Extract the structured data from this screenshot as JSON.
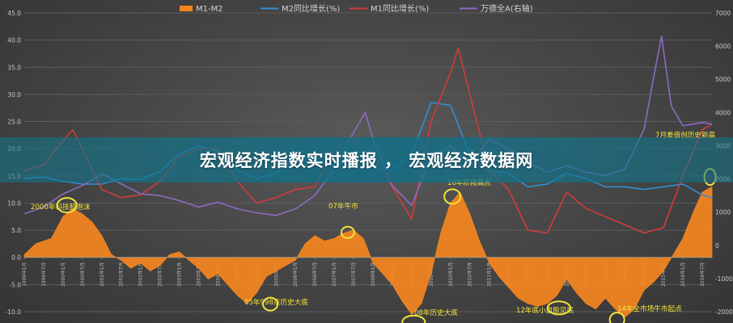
{
  "banner": {
    "title": "宏观经济指数实时播报 ， 宏观经济数据网"
  },
  "chart_data": {
    "type": "line",
    "legend_position": "top",
    "grid": true,
    "y_left": {
      "min": -10.0,
      "max": 45.0,
      "step": 5,
      "ticks": [
        "-10.0",
        "-5.0",
        "0.0",
        "5.0",
        "10.0",
        "15.0",
        "20.0",
        "25.0",
        "30.0",
        "35.0",
        "40.0",
        "45.0"
      ]
    },
    "y_right": {
      "min": -2000,
      "max": 7000,
      "step": 1000,
      "ticks": [
        "-2000",
        "-1000",
        "0",
        "1000",
        "2000",
        "3000",
        "4000",
        "5000",
        "6000",
        "7000"
      ]
    },
    "x_range": [
      1999,
      2016.75
    ],
    "x_tick_labels": [
      "1999年1月",
      "1999年7月",
      "2000年1月",
      "2000年7月",
      "2001年1月",
      "2001年7月",
      "2002年1月",
      "2002年7月",
      "2003年1月",
      "2003年7月",
      "2004年1月",
      "2004年7月",
      "2005年1月",
      "2005年7月",
      "2006年1月",
      "2006年7月",
      "2007年1月",
      "2007年7月",
      "2008年1月",
      "2008年7月",
      "2009年1月",
      "2009年7月",
      "2010年1月",
      "2010年7月",
      "2011年1月",
      "2011年7月",
      "2012年1月",
      "2012年7月",
      "2013年1月",
      "2013年7月",
      "2014年1月",
      "2014年7月",
      "2015年1月",
      "2015年7月",
      "2016年1月",
      "2016年7月"
    ],
    "series": [
      {
        "name": "M1-M2",
        "type": "area",
        "axis": "left",
        "color": "#f5861f",
        "x": [
          1999.0,
          1999.3,
          1999.7,
          2000.0,
          2000.25,
          2000.5,
          2000.75,
          2001.0,
          2001.25,
          2001.5,
          2001.75,
          2002.0,
          2002.25,
          2002.5,
          2002.75,
          2003.0,
          2003.25,
          2003.5,
          2003.75,
          2004.0,
          2004.25,
          2004.5,
          2004.75,
          2005.0,
          2005.25,
          2005.5,
          2005.75,
          2006.0,
          2006.25,
          2006.5,
          2006.75,
          2007.0,
          2007.25,
          2007.5,
          2007.75,
          2008.0,
          2008.25,
          2008.5,
          2008.75,
          2009.0,
          2009.25,
          2009.5,
          2009.75,
          2010.0,
          2010.25,
          2010.5,
          2010.75,
          2011.0,
          2011.25,
          2011.5,
          2011.75,
          2012.0,
          2012.25,
          2012.5,
          2012.75,
          2013.0,
          2013.25,
          2013.5,
          2013.75,
          2014.0,
          2014.25,
          2014.5,
          2014.75,
          2015.0,
          2015.25,
          2015.5,
          2015.75,
          2016.0,
          2016.25,
          2016.5,
          2016.75
        ],
        "y": [
          0.5,
          2.5,
          3.5,
          7.5,
          9.0,
          8.0,
          6.5,
          4.0,
          0.5,
          -0.5,
          -2.0,
          -1.0,
          -2.5,
          -1.5,
          0.5,
          1.0,
          -0.5,
          -2.0,
          -4.0,
          -3.0,
          -5.0,
          -7.0,
          -8.5,
          -6.5,
          -3.5,
          -2.5,
          -1.5,
          -0.5,
          2.5,
          4.0,
          3.0,
          3.5,
          4.5,
          5.0,
          3.5,
          -1.0,
          -3.0,
          -5.0,
          -8.0,
          -10.5,
          -8.5,
          -3.0,
          4.5,
          10.0,
          12.0,
          8.0,
          3.0,
          -1.0,
          -3.5,
          -5.5,
          -7.5,
          -8.5,
          -9.0,
          -8.5,
          -7.0,
          -4.0,
          -6.5,
          -8.5,
          -9.5,
          -7.5,
          -9.5,
          -11.0,
          -9.5,
          -6.0,
          -4.5,
          -2.5,
          0.5,
          3.5,
          8.0,
          12.0,
          13.0
        ]
      },
      {
        "name": "M2同比增长(%)",
        "type": "line",
        "axis": "left",
        "color": "#2f8fd6",
        "x": [
          1999.0,
          1999.5,
          2000.0,
          2000.5,
          2001.0,
          2001.5,
          2002.0,
          2002.5,
          2003.0,
          2003.5,
          2004.0,
          2004.5,
          2005.0,
          2005.5,
          2006.0,
          2006.5,
          2007.0,
          2007.5,
          2008.0,
          2008.5,
          2009.0,
          2009.5,
          2010.0,
          2010.5,
          2011.0,
          2011.5,
          2012.0,
          2012.5,
          2013.0,
          2013.5,
          2014.0,
          2014.5,
          2015.0,
          2015.5,
          2016.0,
          2016.5,
          2016.75
        ],
        "y": [
          14.5,
          14.8,
          14.0,
          13.5,
          13.5,
          14.5,
          14.3,
          15.8,
          19.0,
          20.5,
          19.5,
          16.0,
          14.5,
          15.5,
          18.5,
          18.0,
          17.0,
          18.0,
          16.5,
          16.0,
          19.0,
          28.5,
          28.0,
          19.0,
          16.0,
          15.5,
          13.0,
          13.5,
          15.5,
          14.5,
          13.0,
          13.0,
          12.5,
          13.0,
          13.5,
          11.5,
          11.0
        ]
      },
      {
        "name": "M1同比增长(%)",
        "type": "line",
        "axis": "left",
        "color": "#d23b3b",
        "x": [
          1999.0,
          1999.5,
          2000.0,
          2000.25,
          2000.5,
          2001.0,
          2001.5,
          2002.0,
          2002.5,
          2003.0,
          2003.5,
          2004.0,
          2004.5,
          2005.0,
          2005.5,
          2006.0,
          2006.5,
          2007.0,
          2007.5,
          2008.0,
          2008.5,
          2009.0,
          2009.5,
          2010.0,
          2010.2,
          2010.5,
          2011.0,
          2011.5,
          2012.0,
          2012.5,
          2013.0,
          2013.5,
          2014.0,
          2014.5,
          2015.0,
          2015.5,
          2016.0,
          2016.5,
          2016.75
        ],
        "y": [
          16.0,
          17.0,
          21.5,
          23.5,
          20.0,
          12.5,
          11.0,
          11.5,
          14.0,
          18.5,
          20.0,
          20.0,
          14.0,
          10.0,
          11.0,
          12.5,
          13.0,
          20.0,
          22.0,
          19.0,
          13.0,
          7.0,
          25.0,
          34.0,
          38.5,
          30.0,
          16.0,
          12.5,
          5.0,
          4.5,
          12.0,
          9.0,
          7.5,
          6.0,
          4.5,
          5.5,
          15.0,
          23.5,
          24.5
        ]
      },
      {
        "name": "万德全A(右轴)",
        "type": "line",
        "axis": "right",
        "color": "#8d6bc1",
        "x": [
          1999.0,
          1999.5,
          2000.0,
          2000.5,
          2001.0,
          2001.5,
          2002.0,
          2002.5,
          2003.0,
          2003.5,
          2004.0,
          2004.5,
          2005.0,
          2005.5,
          2006.0,
          2006.5,
          2007.0,
          2007.5,
          2007.8,
          2008.0,
          2008.5,
          2009.0,
          2009.5,
          2010.0,
          2010.5,
          2011.0,
          2011.5,
          2012.0,
          2012.5,
          2013.0,
          2013.5,
          2014.0,
          2014.5,
          2015.0,
          2015.25,
          2015.45,
          2015.7,
          2016.0,
          2016.5,
          2016.75
        ],
        "y": [
          950,
          1150,
          1550,
          1800,
          2150,
          1850,
          1550,
          1500,
          1350,
          1150,
          1300,
          1100,
          980,
          900,
          1100,
          1500,
          2300,
          3400,
          4000,
          3200,
          1800,
          1200,
          2700,
          3000,
          2400,
          3200,
          2900,
          2500,
          2200,
          2400,
          2200,
          2100,
          2300,
          3500,
          5100,
          6300,
          4200,
          3600,
          3700,
          3650
        ]
      }
    ],
    "annotations": [
      {
        "text": "2000年科技股泡沫",
        "x": 2000.15,
        "y": 9.6
      },
      {
        "text": "07年牛市",
        "x": 2007.4,
        "y": 4.5
      },
      {
        "text": "05年998点历史大底",
        "x": 2005.25,
        "y": -8.5
      },
      {
        "text": "08年历史大底",
        "x": 2009.0,
        "y": -11.8
      },
      {
        "text": "10年阶段高点",
        "x": 2010.1,
        "y": 11.2
      },
      {
        "text": "12年底小盘股见底",
        "x": 2012.8,
        "y": -9.2
      },
      {
        "text": "14年全市场牛市起点",
        "x": 2014.3,
        "y": -11.6
      },
      {
        "text": "7月差值创历史新高",
        "x": 2016.7,
        "y": 14.8
      }
    ]
  }
}
